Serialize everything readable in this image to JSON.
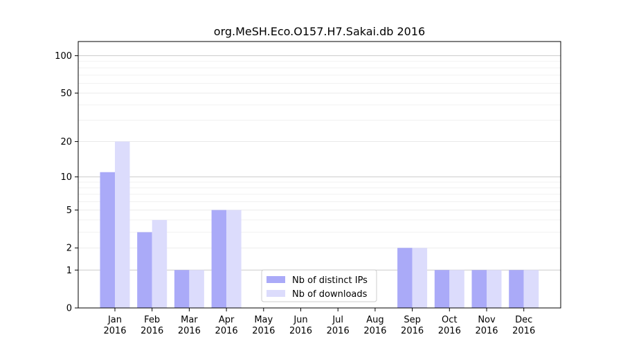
{
  "chart_data": {
    "type": "bar",
    "title": "org.MeSH.Eco.O157.H7.Sakai.db 2016",
    "xlabel": "",
    "ylabel": "",
    "yscale": "log(1+y)",
    "ylim": [
      0,
      130
    ],
    "yticks": [
      0,
      1,
      2,
      5,
      10,
      20,
      50,
      100
    ],
    "grid": true,
    "legend_position": "lower-center",
    "categories": [
      {
        "month": "Jan",
        "year": "2016"
      },
      {
        "month": "Feb",
        "year": "2016"
      },
      {
        "month": "Mar",
        "year": "2016"
      },
      {
        "month": "Apr",
        "year": "2016"
      },
      {
        "month": "May",
        "year": "2016"
      },
      {
        "month": "Jun",
        "year": "2016"
      },
      {
        "month": "Jul",
        "year": "2016"
      },
      {
        "month": "Aug",
        "year": "2016"
      },
      {
        "month": "Sep",
        "year": "2016"
      },
      {
        "month": "Oct",
        "year": "2016"
      },
      {
        "month": "Nov",
        "year": "2016"
      },
      {
        "month": "Dec",
        "year": "2016"
      }
    ],
    "series": [
      {
        "name": "Nb of distinct IPs",
        "color": "#aaaaf8",
        "values": [
          11,
          3,
          1,
          5,
          0,
          0,
          0,
          0,
          2,
          1,
          1,
          1
        ]
      },
      {
        "name": "Nb of downloads",
        "color": "#dcdcfc",
        "values": [
          20,
          4,
          1,
          5,
          0,
          0,
          0,
          0,
          2,
          1,
          1,
          1
        ]
      }
    ]
  }
}
